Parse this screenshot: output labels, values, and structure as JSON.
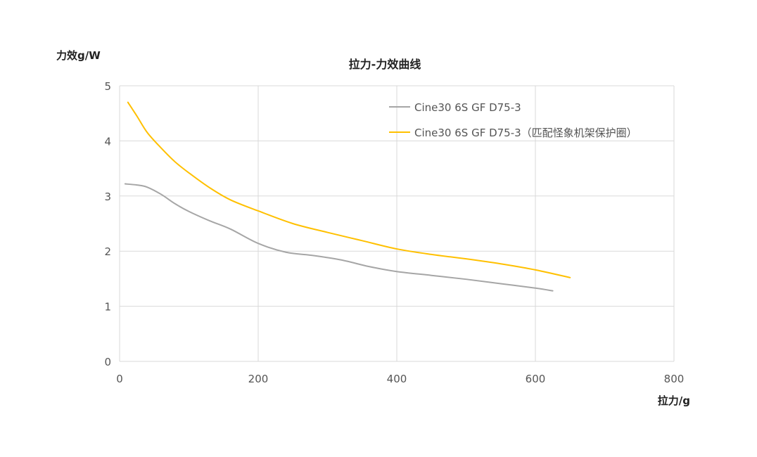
{
  "chart_data": {
    "type": "line",
    "title": "拉力-力效曲线",
    "xlabel": "拉力/g",
    "ylabel": "力效g/W",
    "xlim": [
      0,
      800
    ],
    "ylim": [
      0,
      5
    ],
    "x_ticks": [
      "0",
      "200",
      "400",
      "600",
      "800"
    ],
    "y_ticks": [
      "0",
      "1",
      "2",
      "3",
      "4",
      "5"
    ],
    "grid": true,
    "legend_position": "top-right",
    "series": [
      {
        "name": "Cine30 6S GF  D75-3",
        "color": "#a6a6a6",
        "points": [
          [
            8,
            3.22
          ],
          [
            25,
            3.2
          ],
          [
            40,
            3.16
          ],
          [
            60,
            3.03
          ],
          [
            80,
            2.86
          ],
          [
            100,
            2.72
          ],
          [
            130,
            2.55
          ],
          [
            160,
            2.4
          ],
          [
            200,
            2.14
          ],
          [
            240,
            1.98
          ],
          [
            280,
            1.92
          ],
          [
            320,
            1.84
          ],
          [
            360,
            1.72
          ],
          [
            400,
            1.63
          ],
          [
            450,
            1.56
          ],
          [
            500,
            1.49
          ],
          [
            550,
            1.41
          ],
          [
            600,
            1.33
          ],
          [
            625,
            1.28
          ]
        ]
      },
      {
        "name": "Cine30 6S GF D75-3（匹配怪象机架保护圈）",
        "color": "#ffc000",
        "points": [
          [
            12,
            4.7
          ],
          [
            25,
            4.45
          ],
          [
            40,
            4.15
          ],
          [
            60,
            3.87
          ],
          [
            80,
            3.62
          ],
          [
            100,
            3.42
          ],
          [
            130,
            3.15
          ],
          [
            160,
            2.93
          ],
          [
            200,
            2.73
          ],
          [
            250,
            2.5
          ],
          [
            300,
            2.34
          ],
          [
            350,
            2.19
          ],
          [
            400,
            2.04
          ],
          [
            450,
            1.94
          ],
          [
            500,
            1.86
          ],
          [
            550,
            1.77
          ],
          [
            600,
            1.66
          ],
          [
            650,
            1.52
          ]
        ]
      }
    ]
  }
}
